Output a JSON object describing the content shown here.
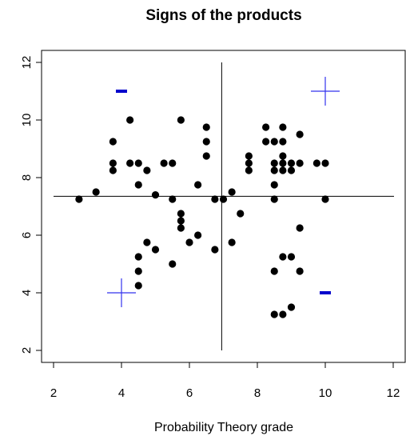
{
  "chart_data": {
    "type": "scatter",
    "title": "Signs of the products",
    "xlabel": "Probability Theory grade",
    "ylabel": "",
    "xlim": [
      2,
      12
    ],
    "ylim": [
      2,
      12
    ],
    "x_ticks": [
      "2",
      "4",
      "6",
      "8",
      "10",
      "12"
    ],
    "y_ticks": [
      "2",
      "4",
      "6",
      "8",
      "10",
      "12"
    ],
    "grid": false,
    "reference_lines": {
      "vertical_x": 6.95,
      "horizontal_y": 7.35
    },
    "points": [
      [
        2.75,
        7.25
      ],
      [
        3.25,
        7.5
      ],
      [
        3.75,
        9.25
      ],
      [
        3.75,
        8.5
      ],
      [
        3.75,
        8.25
      ],
      [
        4.25,
        10.0
      ],
      [
        4.25,
        8.5
      ],
      [
        4.5,
        8.5
      ],
      [
        4.5,
        7.75
      ],
      [
        4.75,
        8.25
      ],
      [
        5.0,
        7.4
      ],
      [
        5.25,
        8.5
      ],
      [
        5.5,
        8.5
      ],
      [
        5.5,
        7.25
      ],
      [
        5.75,
        10.0
      ],
      [
        5.75,
        6.75
      ],
      [
        5.75,
        6.5
      ],
      [
        5.75,
        6.25
      ],
      [
        6.0,
        5.75
      ],
      [
        6.25,
        6.0
      ],
      [
        6.25,
        7.75
      ],
      [
        6.5,
        9.75
      ],
      [
        6.5,
        9.25
      ],
      [
        6.5,
        8.75
      ],
      [
        6.75,
        7.25
      ],
      [
        6.75,
        5.5
      ],
      [
        4.5,
        5.25
      ],
      [
        4.5,
        4.75
      ],
      [
        4.5,
        4.25
      ],
      [
        4.75,
        5.75
      ],
      [
        5.0,
        5.5
      ],
      [
        5.5,
        5.0
      ],
      [
        7.0,
        7.25
      ],
      [
        7.25,
        7.5
      ],
      [
        7.25,
        5.75
      ],
      [
        7.5,
        6.75
      ],
      [
        7.75,
        8.75
      ],
      [
        7.75,
        8.5
      ],
      [
        7.75,
        8.25
      ],
      [
        8.25,
        9.75
      ],
      [
        8.25,
        9.25
      ],
      [
        8.5,
        9.25
      ],
      [
        8.5,
        8.5
      ],
      [
        8.5,
        8.25
      ],
      [
        8.5,
        7.75
      ],
      [
        8.5,
        7.25
      ],
      [
        8.75,
        9.75
      ],
      [
        8.75,
        9.25
      ],
      [
        8.75,
        8.75
      ],
      [
        8.75,
        8.5
      ],
      [
        8.75,
        8.25
      ],
      [
        9.0,
        8.25
      ],
      [
        9.0,
        8.5
      ],
      [
        9.25,
        9.5
      ],
      [
        9.25,
        8.5
      ],
      [
        9.75,
        8.5
      ],
      [
        10.0,
        8.5
      ],
      [
        10.0,
        7.25
      ],
      [
        8.5,
        4.75
      ],
      [
        8.75,
        5.25
      ],
      [
        9.0,
        5.25
      ],
      [
        9.25,
        4.75
      ],
      [
        9.25,
        6.25
      ],
      [
        8.5,
        3.25
      ],
      [
        8.75,
        3.25
      ],
      [
        9.0,
        3.5
      ]
    ],
    "quadrant_signs": [
      {
        "sign": "minus",
        "x": 4.0,
        "y": 11.0,
        "color": "#0000cc"
      },
      {
        "sign": "plus",
        "x": 10.0,
        "y": 11.0,
        "color": "#3333ee"
      },
      {
        "sign": "plus",
        "x": 4.0,
        "y": 4.0,
        "color": "#3333ee"
      },
      {
        "sign": "minus",
        "x": 10.0,
        "y": 4.0,
        "color": "#0000cc"
      }
    ],
    "point_color": "#000000",
    "line_color": "#000000"
  }
}
